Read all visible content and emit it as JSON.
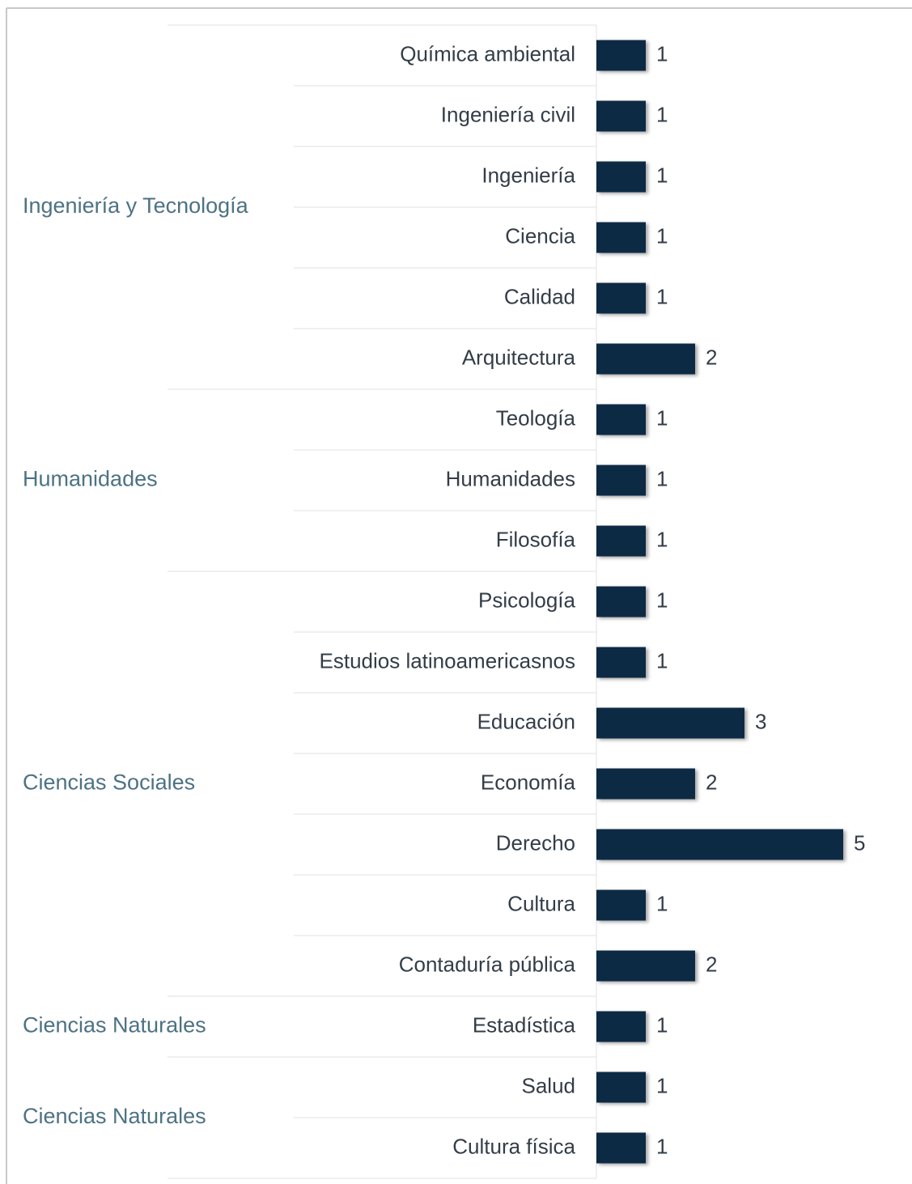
{
  "chart_data": {
    "type": "bar",
    "orientation": "horizontal",
    "color": "#0b2b44",
    "groups": [
      {
        "name": "Ingeniería y Tecnología",
        "categories": [
          "Química ambiental",
          "Ingeniería civil",
          "Ingeniería",
          "Ciencia",
          "Calidad",
          "Arquitectura"
        ],
        "values": [
          1,
          1,
          1,
          1,
          1,
          2
        ]
      },
      {
        "name": "Humanidades",
        "categories": [
          "Teología",
          "Humanidades",
          "Filosofía"
        ],
        "values": [
          1,
          1,
          1
        ]
      },
      {
        "name": "Ciencias Sociales",
        "categories": [
          "Psicología",
          "Estudios latinoamericasnos",
          "Educación",
          "Economía",
          "Derecho",
          "Cultura",
          "Contaduría pública"
        ],
        "values": [
          1,
          1,
          3,
          2,
          5,
          1,
          2
        ]
      },
      {
        "name": "Ciencias Naturales",
        "categories": [
          "Estadística"
        ],
        "values": [
          1
        ]
      },
      {
        "name": "Ciencias Naturales",
        "categories": [
          "Salud",
          "Cultura física"
        ],
        "values": [
          1,
          1
        ]
      }
    ]
  }
}
